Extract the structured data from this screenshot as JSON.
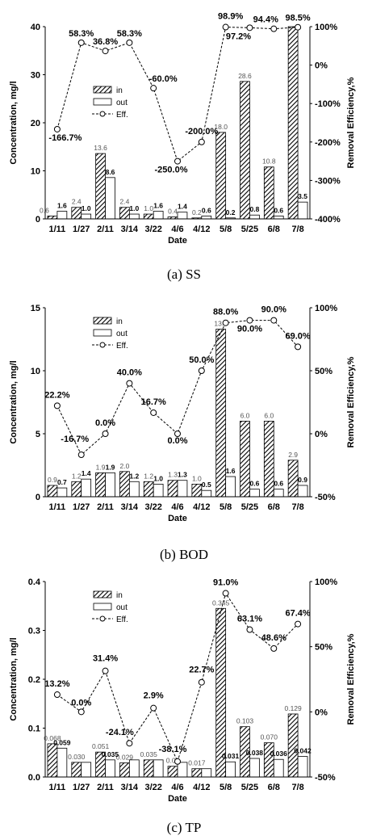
{
  "figure": {
    "legend": {
      "in": "in",
      "out": "out",
      "eff": "Eff."
    },
    "x_title": "Date",
    "y_left_title": "Concentration, mg/l",
    "y_right_title": "Removal Efficiency,%"
  },
  "chart_data": [
    {
      "type": "bar",
      "caption": "(a) SS",
      "categories": [
        "1/11",
        "1/27",
        "2/11",
        "3/14",
        "3/22",
        "4/6",
        "4/12",
        "5/8",
        "5/25",
        "6/8",
        "7/8"
      ],
      "y_left": {
        "title": "Concentration, mg/l",
        "ylim": [
          0,
          40
        ],
        "ticks": [
          "0",
          "10",
          "20",
          "30",
          "40"
        ],
        "tick_values": [
          0,
          10,
          20,
          30,
          40
        ]
      },
      "y_right": {
        "title": "Removal Efficiency,%",
        "ylim": [
          -400,
          100
        ],
        "ticks": [
          "-400%",
          "-300%",
          "-200%",
          "-100%",
          "0%",
          "100%"
        ],
        "tick_values": [
          -400,
          -300,
          -200,
          -100,
          0,
          100
        ]
      },
      "xlabel": "Date",
      "series": [
        {
          "name": "in",
          "type": "bar",
          "values": [
            0.6,
            2.4,
            13.6,
            2.4,
            1.0,
            0.4,
            0.2,
            18.0,
            28.6,
            10.8,
            40.0
          ],
          "labels": [
            "0.6",
            "2.4",
            "13.6",
            "2.4",
            "1.0",
            "0.4",
            "0.2",
            "18.0",
            "28.6",
            "10.8",
            ""
          ]
        },
        {
          "name": "out",
          "type": "bar",
          "values": [
            1.6,
            1.0,
            8.6,
            1.0,
            1.6,
            1.4,
            0.6,
            0.2,
            0.8,
            0.6,
            3.5
          ],
          "labels": [
            "1.6",
            "1.0",
            "8.6",
            "1.0",
            "1.6",
            "1.4",
            "0.6",
            "0.2",
            "0.8",
            "0.6",
            "3.5"
          ]
        },
        {
          "name": "Eff.",
          "type": "line",
          "axis": "right",
          "values": [
            -166.7,
            58.3,
            36.8,
            58.3,
            -60.0,
            -250.0,
            -200.0,
            98.9,
            97.2,
            94.4,
            98.5
          ],
          "labels": [
            "-166.7%",
            "58.3%",
            "36.8%",
            "58.3%",
            "-60.0%",
            "-250.0%",
            "-200.0%",
            "98.9%",
            "97.2%",
            "94.4%",
            "98.5%"
          ]
        }
      ]
    },
    {
      "type": "bar",
      "caption": "(b) BOD",
      "categories": [
        "1/11",
        "1/27",
        "2/11",
        "3/14",
        "3/22",
        "4/6",
        "4/12",
        "5/8",
        "5/25",
        "6/8",
        "7/8"
      ],
      "y_left": {
        "title": "Concentration, mg/l",
        "ylim": [
          0,
          15
        ],
        "ticks": [
          "0",
          "5",
          "10",
          "15"
        ],
        "tick_values": [
          0,
          5,
          10,
          15
        ]
      },
      "y_right": {
        "title": "Removal Efficiency,%",
        "ylim": [
          -50,
          100
        ],
        "ticks": [
          "-50%",
          "0%",
          "50%",
          "100%"
        ],
        "tick_values": [
          -50,
          0,
          50,
          100
        ]
      },
      "xlabel": "Date",
      "series": [
        {
          "name": "in",
          "type": "bar",
          "values": [
            0.9,
            1.2,
            1.9,
            2.0,
            1.2,
            1.3,
            1.0,
            13.3,
            6.0,
            6.0,
            2.9
          ],
          "labels": [
            "0.9",
            "1.2",
            "1.9",
            "2.0",
            "1.2",
            "1.3",
            "1.0",
            "13.3",
            "6.0",
            "6.0",
            "2.9"
          ]
        },
        {
          "name": "out",
          "type": "bar",
          "values": [
            0.7,
            1.4,
            1.9,
            1.2,
            1.0,
            1.3,
            0.5,
            1.6,
            0.6,
            0.6,
            0.9
          ],
          "labels": [
            "0.7",
            "1.4",
            "1.9",
            "1.2",
            "1.0",
            "1.3",
            "0.5",
            "1.6",
            "0.6",
            "0.6",
            "0.9"
          ]
        },
        {
          "name": "Eff.",
          "type": "line",
          "axis": "right",
          "values": [
            22.2,
            -16.7,
            0.0,
            40.0,
            16.7,
            0.0,
            50.0,
            88.0,
            90.0,
            90.0,
            69.0
          ],
          "labels": [
            "22.2%",
            "-16.7%",
            "0.0%",
            "40.0%",
            "16.7%",
            "0.0%",
            "50.0%",
            "88.0%",
            "90.0%",
            "90.0%",
            "69.0%"
          ]
        }
      ]
    },
    {
      "type": "bar",
      "caption": "(c) TP",
      "categories": [
        "1/11",
        "1/27",
        "2/11",
        "3/14",
        "3/22",
        "4/6",
        "4/12",
        "5/8",
        "5/25",
        "6/8",
        "7/8"
      ],
      "y_left": {
        "title": "Concentration, mg/l",
        "ylim": [
          0,
          0.4
        ],
        "ticks": [
          "0.0",
          "0.1",
          "0.2",
          "0.3",
          "0.4"
        ],
        "tick_values": [
          0,
          0.1,
          0.2,
          0.3,
          0.4
        ]
      },
      "y_right": {
        "title": "Removal Efficiency,%",
        "ylim": [
          -50,
          100
        ],
        "ticks": [
          "-50%",
          "0%",
          "50%",
          "100%"
        ],
        "tick_values": [
          -50,
          0,
          50,
          100
        ]
      },
      "xlabel": "Date",
      "series": [
        {
          "name": "in",
          "type": "bar",
          "values": [
            0.068,
            0.03,
            0.051,
            0.029,
            0.035,
            0.022,
            0.017,
            0.345,
            0.103,
            0.07,
            0.129
          ],
          "labels": [
            "0.068",
            "0.030",
            "0.051",
            "0.029",
            "0.035",
            "0.02",
            "0.017",
            "0.345",
            "0.103",
            "0.070",
            "0.129"
          ]
        },
        {
          "name": "out",
          "type": "bar",
          "values": [
            0.059,
            0.03,
            0.035,
            0.035,
            0.035,
            0.03,
            0.017,
            0.031,
            0.038,
            0.036,
            0.042
          ],
          "labels": [
            "0.059",
            "",
            "0.035",
            "",
            "",
            "",
            "",
            "0.031",
            "0.038",
            "0.036",
            "0.042"
          ]
        },
        {
          "name": "Eff.",
          "type": "line",
          "axis": "right",
          "values": [
            13.2,
            0.0,
            31.4,
            -24.1,
            2.9,
            -38.1,
            22.7,
            91.0,
            63.1,
            48.6,
            67.4
          ],
          "labels": [
            "13.2%",
            "0.0%",
            "31.4%",
            "-24.1%",
            "2.9%",
            "-38.1%",
            "22.7%",
            "91.0%",
            "63.1%",
            "48.6%",
            "67.4%"
          ]
        }
      ]
    }
  ]
}
